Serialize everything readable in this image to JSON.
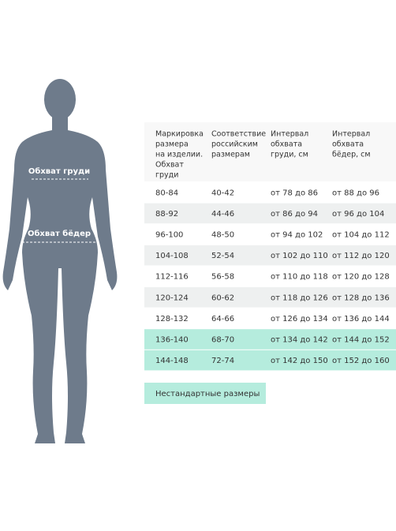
{
  "figure": {
    "chest_label": "Обхват груди",
    "hips_label": "Обхват бёдер"
  },
  "table": {
    "header": [
      [
        "Маркировка",
        "размера",
        "на изделии.",
        "Обхват",
        "груди"
      ],
      [
        "Соответствие",
        "российским",
        "размерам"
      ],
      [
        "Интервал",
        "обхвата",
        "груди, см"
      ],
      [
        "Интервал",
        "обхвата",
        "бёдер, см"
      ]
    ],
    "rows": [
      [
        "80-84",
        "40-42",
        "от 78 до 86",
        "от 88 до 96"
      ],
      [
        "88-92",
        "44-46",
        "от 86 до 94",
        "от 96 до 104"
      ],
      [
        "96-100",
        "48-50",
        "от 94 до 102",
        "от 104 до 112"
      ],
      [
        "104-108",
        "52-54",
        "от 102 до 110",
        "от 112 до 120"
      ],
      [
        "112-116",
        "56-58",
        "от 110 до 118",
        "от 120 до 128"
      ],
      [
        "120-124",
        "60-62",
        "от 118 до 126",
        "от 128 до 136"
      ],
      [
        "128-132",
        "64-66",
        "от 126 до 134",
        "от 136 до 144"
      ],
      [
        "136-140",
        "68-70",
        "от 134 до 142",
        "от 144 до 152"
      ],
      [
        "144-148",
        "72-74",
        "от 142 до 150",
        "от 152 до 160"
      ]
    ]
  },
  "button": {
    "label": "Нестандартные размеры"
  }
}
